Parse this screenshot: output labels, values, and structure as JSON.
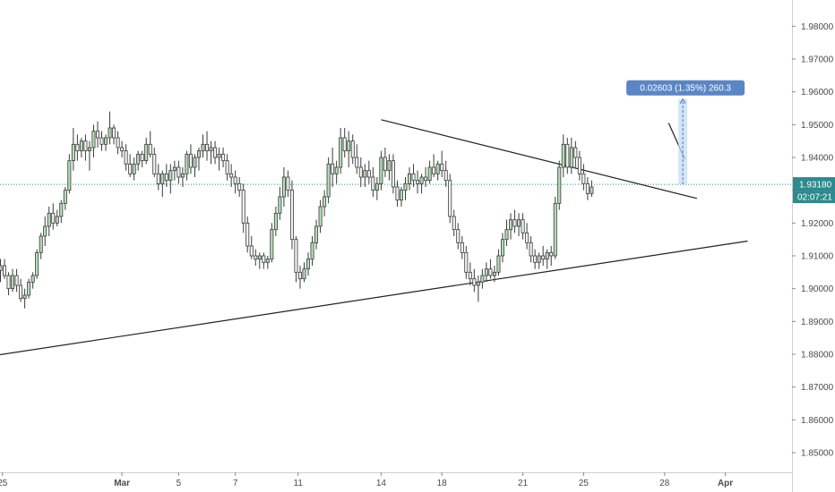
{
  "chart_data": {
    "type": "candlestick",
    "title": "",
    "xlabel": "",
    "ylabel": "",
    "ylim": [
      1.844,
      1.988
    ],
    "y_ticks": [
      "1.85000",
      "1.86000",
      "1.87000",
      "1.88000",
      "1.89000",
      "1.90000",
      "1.91000",
      "1.92000",
      "1.93000",
      "1.94000",
      "1.95000",
      "1.96000",
      "1.97000",
      "1.98000"
    ],
    "x_ticks": [
      {
        "label": "25",
        "bar": 0.5
      },
      {
        "label": "Mar",
        "bar": 30
      },
      {
        "label": "5",
        "bar": 44
      },
      {
        "label": "7",
        "bar": 58
      },
      {
        "label": "11",
        "bar": 73.5
      },
      {
        "label": "14",
        "bar": 94
      },
      {
        "label": "18",
        "bar": 109
      },
      {
        "label": "21",
        "bar": 129
      },
      {
        "label": "25",
        "bar": 144
      },
      {
        "label": "28",
        "bar": 164
      },
      {
        "label": "Apr",
        "bar": 179
      }
    ],
    "up_color": "#b2dfb6",
    "down_color": "#f2f2f2",
    "outline_color": "#3a3a3a",
    "candles": [
      [
        1.9055,
        1.909,
        1.902,
        1.907
      ],
      [
        1.907,
        1.909,
        1.903,
        1.904
      ],
      [
        1.904,
        1.905,
        1.898,
        1.9
      ],
      [
        1.9,
        1.906,
        1.899,
        1.904
      ],
      [
        1.904,
        1.906,
        1.899,
        1.901
      ],
      [
        1.901,
        1.903,
        1.896,
        1.897
      ],
      [
        1.897,
        1.9,
        1.894,
        1.898
      ],
      [
        1.898,
        1.903,
        1.897,
        1.902
      ],
      [
        1.902,
        1.905,
        1.9,
        1.904
      ],
      [
        1.904,
        1.912,
        1.903,
        1.911
      ],
      [
        1.911,
        1.917,
        1.909,
        1.916
      ],
      [
        1.916,
        1.922,
        1.913,
        1.919
      ],
      [
        1.919,
        1.925,
        1.916,
        1.923
      ],
      [
        1.923,
        1.926,
        1.918,
        1.92
      ],
      [
        1.92,
        1.924,
        1.919,
        1.922
      ],
      [
        1.922,
        1.927,
        1.92,
        1.926
      ],
      [
        1.926,
        1.931,
        1.924,
        1.93
      ],
      [
        1.93,
        1.941,
        1.929,
        1.939
      ],
      [
        1.939,
        1.949,
        1.936,
        1.944
      ],
      [
        1.944,
        1.947,
        1.939,
        1.942
      ],
      [
        1.942,
        1.946,
        1.94,
        1.945
      ],
      [
        1.945,
        1.947,
        1.939,
        1.942
      ],
      [
        1.942,
        1.945,
        1.936,
        1.943
      ],
      [
        1.943,
        1.95,
        1.94,
        1.948
      ],
      [
        1.948,
        1.951,
        1.943,
        1.946
      ],
      [
        1.946,
        1.948,
        1.942,
        1.944
      ],
      [
        1.944,
        1.947,
        1.942,
        1.946
      ],
      [
        1.946,
        1.954,
        1.944,
        1.949
      ],
      [
        1.949,
        1.95,
        1.944,
        1.946
      ],
      [
        1.946,
        1.948,
        1.941,
        1.943
      ],
      [
        1.943,
        1.945,
        1.94,
        1.942
      ],
      [
        1.942,
        1.944,
        1.936,
        1.938
      ],
      [
        1.938,
        1.941,
        1.934,
        1.935
      ],
      [
        1.935,
        1.94,
        1.933,
        1.938
      ],
      [
        1.938,
        1.942,
        1.936,
        1.941
      ],
      [
        1.941,
        1.942,
        1.937,
        1.939
      ],
      [
        1.939,
        1.946,
        1.938,
        1.944
      ],
      [
        1.944,
        1.948,
        1.94,
        1.941
      ],
      [
        1.941,
        1.943,
        1.934,
        1.935
      ],
      [
        1.935,
        1.938,
        1.93,
        1.932
      ],
      [
        1.932,
        1.936,
        1.928,
        1.935
      ],
      [
        1.935,
        1.938,
        1.931,
        1.933
      ],
      [
        1.933,
        1.938,
        1.929,
        1.936
      ],
      [
        1.936,
        1.939,
        1.933,
        1.937
      ],
      [
        1.937,
        1.939,
        1.932,
        1.934
      ],
      [
        1.934,
        1.937,
        1.931,
        1.935
      ],
      [
        1.935,
        1.942,
        1.933,
        1.941
      ],
      [
        1.941,
        1.944,
        1.935,
        1.937
      ],
      [
        1.937,
        1.941,
        1.934,
        1.94
      ],
      [
        1.94,
        1.943,
        1.936,
        1.942
      ],
      [
        1.942,
        1.947,
        1.94,
        1.944
      ],
      [
        1.944,
        1.948,
        1.939,
        1.942
      ],
      [
        1.942,
        1.945,
        1.938,
        1.943
      ],
      [
        1.943,
        1.945,
        1.938,
        1.94
      ],
      [
        1.94,
        1.943,
        1.936,
        1.941
      ],
      [
        1.941,
        1.943,
        1.937,
        1.939
      ],
      [
        1.939,
        1.941,
        1.933,
        1.935
      ],
      [
        1.935,
        1.938,
        1.931,
        1.934
      ],
      [
        1.934,
        1.936,
        1.929,
        1.932
      ],
      [
        1.932,
        1.934,
        1.928,
        1.93
      ],
      [
        1.93,
        1.932,
        1.917,
        1.92
      ],
      [
        1.92,
        1.922,
        1.911,
        1.913
      ],
      [
        1.913,
        1.916,
        1.909,
        1.91
      ],
      [
        1.91,
        1.912,
        1.907,
        1.909
      ],
      [
        1.909,
        1.911,
        1.906,
        1.91
      ],
      [
        1.91,
        1.911,
        1.906,
        1.908
      ],
      [
        1.908,
        1.91,
        1.906,
        1.909
      ],
      [
        1.909,
        1.92,
        1.908,
        1.918
      ],
      [
        1.918,
        1.925,
        1.916,
        1.923
      ],
      [
        1.923,
        1.931,
        1.921,
        1.928
      ],
      [
        1.928,
        1.937,
        1.925,
        1.934
      ],
      [
        1.934,
        1.936,
        1.928,
        1.93
      ],
      [
        1.93,
        1.933,
        1.912,
        1.915
      ],
      [
        1.915,
        1.916,
        1.902,
        1.905
      ],
      [
        1.905,
        1.907,
        1.9,
        1.903
      ],
      [
        1.903,
        1.908,
        1.902,
        1.906
      ],
      [
        1.906,
        1.911,
        1.904,
        1.909
      ],
      [
        1.909,
        1.916,
        1.907,
        1.914
      ],
      [
        1.914,
        1.921,
        1.912,
        1.919
      ],
      [
        1.919,
        1.927,
        1.917,
        1.925
      ],
      [
        1.925,
        1.93,
        1.922,
        1.928
      ],
      [
        1.928,
        1.94,
        1.926,
        1.938
      ],
      [
        1.938,
        1.943,
        1.931,
        1.935
      ],
      [
        1.935,
        1.939,
        1.932,
        1.937
      ],
      [
        1.937,
        1.949,
        1.935,
        1.946
      ],
      [
        1.946,
        1.949,
        1.94,
        1.942
      ],
      [
        1.942,
        1.948,
        1.937,
        1.945
      ],
      [
        1.945,
        1.947,
        1.938,
        1.94
      ],
      [
        1.94,
        1.944,
        1.935,
        1.937
      ],
      [
        1.937,
        1.94,
        1.931,
        1.934
      ],
      [
        1.934,
        1.938,
        1.931,
        1.936
      ],
      [
        1.936,
        1.939,
        1.932,
        1.934
      ],
      [
        1.934,
        1.937,
        1.928,
        1.93
      ],
      [
        1.93,
        1.934,
        1.927,
        1.932
      ],
      [
        1.932,
        1.942,
        1.93,
        1.94
      ],
      [
        1.94,
        1.943,
        1.934,
        1.936
      ],
      [
        1.936,
        1.941,
        1.933,
        1.939
      ],
      [
        1.939,
        1.941,
        1.929,
        1.931
      ],
      [
        1.931,
        1.933,
        1.925,
        1.927
      ],
      [
        1.927,
        1.931,
        1.925,
        1.93
      ],
      [
        1.93,
        1.934,
        1.927,
        1.932
      ],
      [
        1.932,
        1.937,
        1.93,
        1.935
      ],
      [
        1.935,
        1.938,
        1.931,
        1.933
      ],
      [
        1.933,
        1.936,
        1.929,
        1.932
      ],
      [
        1.932,
        1.935,
        1.929,
        1.934
      ],
      [
        1.934,
        1.937,
        1.931,
        1.933
      ],
      [
        1.933,
        1.939,
        1.932,
        1.937
      ],
      [
        1.937,
        1.941,
        1.934,
        1.935
      ],
      [
        1.935,
        1.939,
        1.933,
        1.938
      ],
      [
        1.938,
        1.942,
        1.934,
        1.936
      ],
      [
        1.936,
        1.939,
        1.931,
        1.933
      ],
      [
        1.933,
        1.935,
        1.92,
        1.922
      ],
      [
        1.922,
        1.924,
        1.916,
        1.918
      ],
      [
        1.918,
        1.92,
        1.912,
        1.914
      ],
      [
        1.914,
        1.916,
        1.909,
        1.911
      ],
      [
        1.911,
        1.913,
        1.903,
        1.905
      ],
      [
        1.905,
        1.908,
        1.901,
        1.903
      ],
      [
        1.903,
        1.906,
        1.899,
        1.901
      ],
      [
        1.901,
        1.904,
        1.896,
        1.902
      ],
      [
        1.902,
        1.906,
        1.9,
        1.904
      ],
      [
        1.904,
        1.908,
        1.902,
        1.906
      ],
      [
        1.906,
        1.909,
        1.903,
        1.904
      ],
      [
        1.904,
        1.907,
        1.902,
        1.905
      ],
      [
        1.905,
        1.912,
        1.904,
        1.91
      ],
      [
        1.91,
        1.917,
        1.908,
        1.915
      ],
      [
        1.915,
        1.921,
        1.913,
        1.918
      ],
      [
        1.918,
        1.923,
        1.915,
        1.921
      ],
      [
        1.921,
        1.924,
        1.917,
        1.919
      ],
      [
        1.919,
        1.923,
        1.916,
        1.921
      ],
      [
        1.921,
        1.923,
        1.915,
        1.917
      ],
      [
        1.917,
        1.92,
        1.912,
        1.914
      ],
      [
        1.914,
        1.916,
        1.908,
        1.91
      ],
      [
        1.91,
        1.912,
        1.906,
        1.908
      ],
      [
        1.908,
        1.911,
        1.906,
        1.91
      ],
      [
        1.91,
        1.913,
        1.907,
        1.909
      ],
      [
        1.909,
        1.912,
        1.906,
        1.911
      ],
      [
        1.911,
        1.913,
        1.907,
        1.91
      ],
      [
        1.91,
        1.928,
        1.909,
        1.926
      ],
      [
        1.926,
        1.939,
        1.924,
        1.937
      ],
      [
        1.937,
        1.947,
        1.934,
        1.944
      ],
      [
        1.944,
        1.946,
        1.935,
        1.937
      ],
      [
        1.937,
        1.946,
        1.935,
        1.943
      ],
      [
        1.943,
        1.945,
        1.937,
        1.94
      ],
      [
        1.94,
        1.942,
        1.933,
        1.935
      ],
      [
        1.935,
        1.938,
        1.93,
        1.932
      ],
      [
        1.932,
        1.934,
        1.927,
        1.929
      ],
      [
        1.929,
        1.933,
        1.928,
        1.931
      ]
    ],
    "trendlines": [
      {
        "name": "support",
        "points": [
          [
            -2,
            1.8795
          ],
          [
            184.5,
            1.9145
          ]
        ]
      },
      {
        "name": "resistance",
        "points": [
          [
            94,
            1.9515
          ],
          [
            172,
            1.9275
          ]
        ]
      },
      {
        "name": "short",
        "points": [
          [
            165,
            1.9505
          ],
          [
            169,
            1.9395
          ]
        ]
      }
    ],
    "current_price": {
      "value": 1.9318,
      "label": "1.93180",
      "countdown": "02:07:21"
    },
    "measure": {
      "from_bar": 168.5,
      "from": 1.9318,
      "to": 1.9578,
      "label": "0.02603 (1.35%) 260.3"
    }
  }
}
